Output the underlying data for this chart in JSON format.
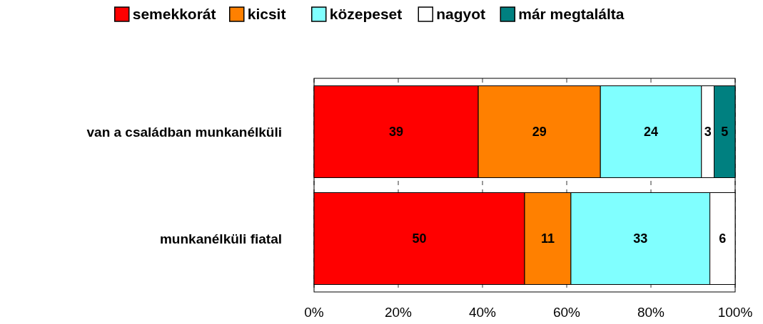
{
  "chart_data": {
    "type": "bar",
    "orientation": "horizontal",
    "stacked": true,
    "categories": [
      "van a családban munkanélküli",
      "munkanélküli fiatal"
    ],
    "series": [
      {
        "name": "semekkorát",
        "color": "#ff0000",
        "values": [
          39,
          50
        ]
      },
      {
        "name": "kicsit",
        "color": "#ff8000",
        "values": [
          29,
          11
        ]
      },
      {
        "name": "közepeset",
        "color": "#80ffff",
        "values": [
          24,
          33
        ]
      },
      {
        "name": "nagyot",
        "color": "#ffffff",
        "values": [
          3,
          6
        ]
      },
      {
        "name": "már megtalálta",
        "color": "#008080",
        "values": [
          5,
          null
        ]
      }
    ],
    "xlim": [
      0,
      100
    ],
    "xticks": [
      {
        "value": 0,
        "label": "0%"
      },
      {
        "value": 20,
        "label": "20%"
      },
      {
        "value": 40,
        "label": "40%"
      },
      {
        "value": 60,
        "label": "60%"
      },
      {
        "value": 80,
        "label": "80%"
      },
      {
        "value": 100,
        "label": "100%"
      }
    ],
    "grid": "x",
    "legend": "top",
    "data_labels": true
  }
}
